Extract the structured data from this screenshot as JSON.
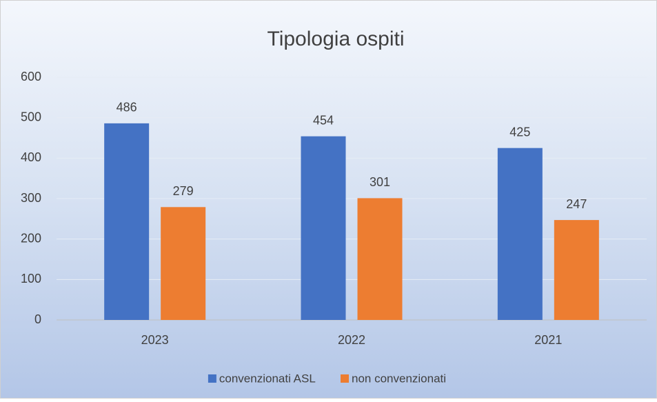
{
  "chart_data": {
    "type": "bar",
    "title": "Tipologia ospiti",
    "categories": [
      "2023",
      "2022",
      "2021"
    ],
    "series": [
      {
        "name": "convenzionati ASL",
        "color": "#4472c4",
        "values": [
          486,
          454,
          425
        ]
      },
      {
        "name": "non convenzionati",
        "color": "#ed7d31",
        "values": [
          279,
          301,
          247
        ]
      }
    ],
    "ylim": [
      0,
      600
    ],
    "yticks": [
      0,
      100,
      200,
      300,
      400,
      500,
      600
    ],
    "grid": true,
    "legend": "bottom"
  }
}
